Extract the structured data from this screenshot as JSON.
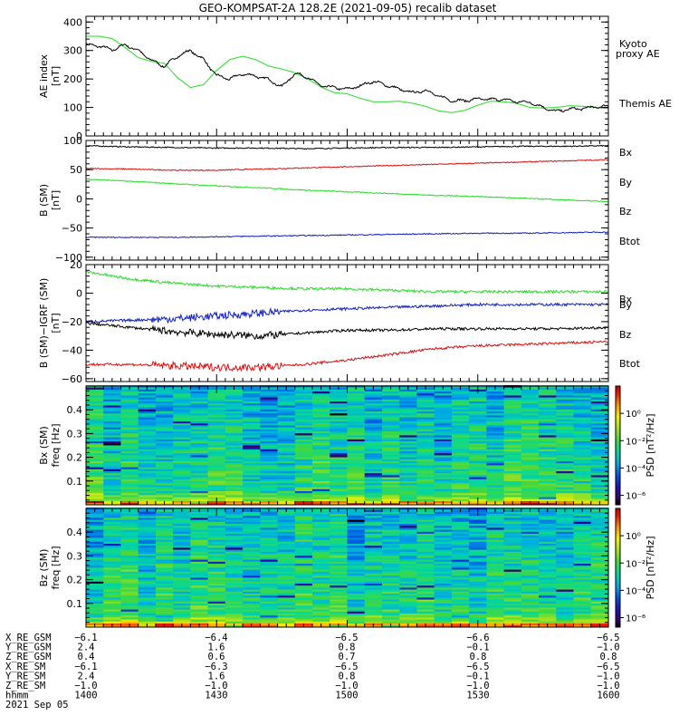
{
  "title": "GEO-KOMPSAT-2A 128.2E (2021-09-05) recalib dataset",
  "colors": {
    "black": "#000000",
    "green": "#22dd22",
    "blue": "#1020c0",
    "red": "#d81010"
  },
  "chart_data": [
    {
      "type": "line",
      "ylabel": "AE index",
      "yunit": "[nT]",
      "ylim": [
        0,
        420
      ],
      "yticks": [
        0,
        100,
        200,
        300,
        400
      ],
      "xlim": [
        0,
        120
      ],
      "series": [
        {
          "name": "Kyoto\nproxy AE",
          "legend": [
            "Kyoto",
            "proxy AE"
          ],
          "color": "#22dd22",
          "x": [
            0,
            3,
            6,
            9,
            12,
            15,
            18,
            21,
            24,
            27,
            30,
            33,
            36,
            39,
            42,
            45,
            48,
            51,
            54,
            57,
            60,
            63,
            66,
            69,
            72,
            75,
            78,
            81,
            84,
            87,
            90,
            93,
            96,
            99,
            102,
            105,
            108,
            111,
            114,
            117,
            120
          ],
          "y": [
            350,
            350,
            342,
            310,
            275,
            262,
            255,
            205,
            170,
            180,
            230,
            268,
            280,
            268,
            245,
            235,
            222,
            200,
            172,
            152,
            148,
            132,
            120,
            120,
            122,
            115,
            104,
            88,
            82,
            90,
            108,
            122,
            120,
            114,
            100,
            98,
            100,
            106,
            104,
            100,
            96
          ]
        },
        {
          "name": "Themis AE",
          "legend": [
            "Themis AE"
          ],
          "color": "#000000",
          "x": [
            0,
            3,
            6,
            9,
            12,
            15,
            18,
            21,
            24,
            27,
            30,
            33,
            36,
            39,
            42,
            45,
            48,
            51,
            54,
            57,
            60,
            63,
            66,
            69,
            72,
            75,
            78,
            81,
            84,
            87,
            90,
            93,
            96,
            99,
            102,
            105,
            108,
            111,
            114,
            117,
            120
          ],
          "y": [
            320,
            316,
            302,
            320,
            300,
            266,
            244,
            280,
            300,
            268,
            212,
            200,
            218,
            210,
            198,
            172,
            220,
            205,
            176,
            170,
            164,
            176,
            192,
            178,
            164,
            152,
            160,
            140,
            124,
            124,
            130,
            128,
            128,
            120,
            118,
            100,
            86,
            94,
            96,
            102,
            104
          ]
        }
      ]
    },
    {
      "type": "line",
      "ylabel": "B (SM)",
      "yunit": "[nT]",
      "ylim": [
        -105,
        100
      ],
      "yticks": [
        -100,
        -50,
        0,
        50,
        100
      ],
      "xlim": [
        0,
        120
      ],
      "series": [
        {
          "name": "Btot",
          "color": "#000000",
          "x": [
            0,
            10,
            20,
            30,
            40,
            50,
            60,
            70,
            80,
            90,
            100,
            110,
            120
          ],
          "y": [
            91,
            89,
            88,
            87,
            87,
            86,
            87,
            88,
            88,
            89,
            90,
            90,
            91
          ]
        },
        {
          "name": "Bz",
          "color": "#d81010",
          "x": [
            0,
            10,
            20,
            30,
            40,
            50,
            60,
            70,
            80,
            90,
            100,
            110,
            120
          ],
          "y": [
            52,
            51,
            49,
            49,
            51,
            53,
            55,
            57,
            59,
            61,
            63,
            65,
            67
          ]
        },
        {
          "name": "By",
          "color": "#22dd22",
          "x": [
            0,
            10,
            20,
            30,
            40,
            50,
            60,
            70,
            80,
            90,
            100,
            110,
            120
          ],
          "y": [
            34,
            30,
            26,
            22,
            19,
            15,
            12,
            9,
            6,
            4,
            1,
            -2,
            -5
          ]
        },
        {
          "name": "Bx",
          "color": "#1020c0",
          "x": [
            0,
            10,
            20,
            30,
            40,
            50,
            60,
            70,
            80,
            90,
            100,
            110,
            120
          ],
          "y": [
            -66,
            -66,
            -66,
            -65,
            -64,
            -63,
            -62,
            -61,
            -60,
            -59,
            -59,
            -58,
            -57
          ]
        }
      ],
      "legend": [
        {
          "label": "Bx",
          "color": "#1020c0"
        },
        {
          "label": "By",
          "color": "#22dd22"
        },
        {
          "label": "Bz",
          "color": "#d81010"
        },
        {
          "label": "Btot",
          "color": "#000000"
        }
      ]
    },
    {
      "type": "line",
      "ylabel": "B (SM)−IGRF (SM)",
      "yunit": "[nT]",
      "ylim": [
        -62,
        20
      ],
      "yticks": [
        -60,
        -40,
        -20,
        0,
        20
      ],
      "xlim": [
        0,
        120
      ],
      "series": [
        {
          "name": "By",
          "color": "#22dd22",
          "x": [
            0,
            10,
            20,
            30,
            40,
            50,
            60,
            70,
            80,
            90,
            100,
            110,
            120
          ],
          "y": [
            15,
            10,
            7,
            5,
            4,
            3,
            3,
            2,
            1,
            1,
            1,
            1,
            1
          ]
        },
        {
          "name": "Bx",
          "color": "#1020c0",
          "x": [
            0,
            10,
            20,
            30,
            40,
            50,
            60,
            70,
            80,
            90,
            100,
            110,
            120
          ],
          "y": [
            -20,
            -19,
            -18,
            -16,
            -14,
            -12,
            -11,
            -10,
            -9,
            -8,
            -8,
            -8,
            -8
          ]
        },
        {
          "name": "Btot",
          "color": "#000000",
          "x": [
            0,
            10,
            20,
            30,
            40,
            50,
            60,
            70,
            80,
            90,
            100,
            110,
            120
          ],
          "y": [
            -21,
            -24,
            -27,
            -29,
            -30,
            -28,
            -26,
            -26,
            -25,
            -25,
            -25,
            -25,
            -24
          ]
        },
        {
          "name": "Bz",
          "color": "#d81010",
          "x": [
            0,
            10,
            20,
            30,
            40,
            50,
            60,
            70,
            80,
            90,
            100,
            110,
            120
          ],
          "y": [
            -50,
            -50,
            -51,
            -52,
            -52,
            -50,
            -47,
            -43,
            -39,
            -37,
            -36,
            -35,
            -34
          ]
        }
      ],
      "legend": [
        {
          "label": "Bx",
          "color": "#1020c0"
        },
        {
          "label": "By",
          "color": "#22dd22"
        },
        {
          "label": "Bz",
          "color": "#d81010"
        },
        {
          "label": "Btot",
          "color": "#000000"
        }
      ]
    },
    {
      "type": "heatmap",
      "ylabel": "Bx (SM)",
      "yunit": "freq [Hz]",
      "ylim": [
        0,
        0.5
      ],
      "yticks": [
        0.1,
        0.2,
        0.3,
        0.4
      ],
      "colorbar": {
        "label": "PSD [nT²/Hz]",
        "ticks": [
          "10⁰",
          "10⁻²",
          "10⁻⁴",
          "10⁻⁶"
        ]
      }
    },
    {
      "type": "heatmap",
      "ylabel": "Bz (SM)",
      "yunit": "freq [Hz]",
      "ylim": [
        0,
        0.5
      ],
      "yticks": [
        0.1,
        0.2,
        0.3,
        0.4
      ],
      "colorbar": {
        "label": "PSD [nT²/Hz]",
        "ticks": [
          "10⁰",
          "10⁻²",
          "10⁻⁴",
          "10⁻⁶"
        ]
      }
    }
  ],
  "ephemeris": {
    "rows": [
      {
        "label": "X_RE_GSM",
        "values": [
          "−6.1",
          "−6.4",
          "−6.5",
          "−6.6",
          "−6.5"
        ]
      },
      {
        "label": "Y_RE_GSM",
        "values": [
          "2.4",
          "1.6",
          "0.8",
          "−0.1",
          "−1.0"
        ]
      },
      {
        "label": "Z_RE_GSM",
        "values": [
          "0.4",
          "0.6",
          "0.7",
          "0.8",
          "0.8"
        ]
      },
      {
        "label": "X_RE_SM",
        "values": [
          "−6.1",
          "−6.3",
          "−6.5",
          "−6.5",
          "−6.5"
        ]
      },
      {
        "label": "Y_RE_SM",
        "values": [
          "2.4",
          "1.6",
          "0.8",
          "−0.1",
          "−1.0"
        ]
      },
      {
        "label": "Z_RE_SM",
        "values": [
          "−1.0",
          "−1.0",
          "−1.0",
          "−1.0",
          "−1.0"
        ]
      },
      {
        "label": "hhmm",
        "values": [
          "1400",
          "1430",
          "1500",
          "1530",
          "1600"
        ]
      }
    ],
    "date": "2021 Sep 05"
  }
}
